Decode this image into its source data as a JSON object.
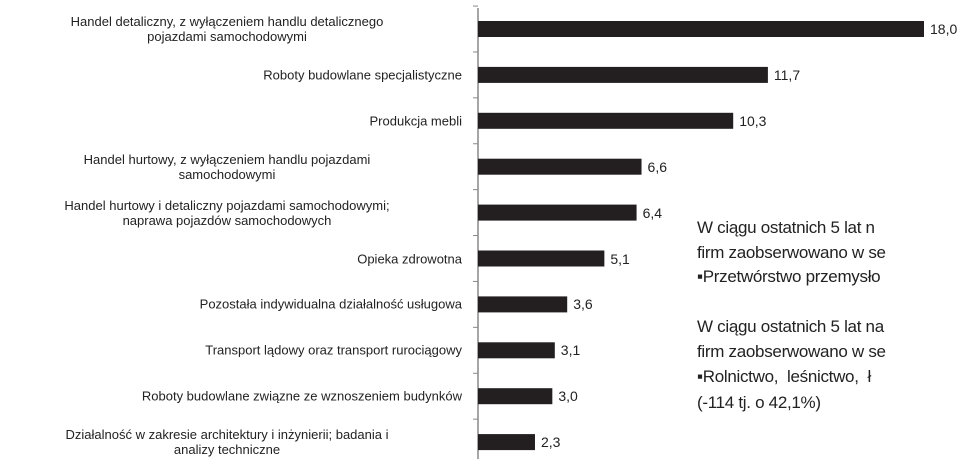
{
  "chart_data": {
    "type": "bar",
    "orientation": "horizontal",
    "categories": [
      "Handel detaliczny, z wyłączeniem handlu detalicznego\npojazdami samochodowymi",
      "Roboty budowlane specjalistyczne",
      "Produkcja mebli",
      "Handel hurtowy, z wyłączeniem  handlu pojazdami\nsamochodowymi",
      "Handel hurtowy i detaliczny pojazdami samochodowymi;\nnaprawa pojazdów samochodowych",
      "Opieka zdrowotna",
      "Pozostała indywidualna działalność usługowa",
      "Transport lądowy oraz transport rurociągowy",
      "Roboty budowlane związne ze wznoszeniem budynków",
      "Działalność w zakresie  architektury  i inżynierii; badania i\nanalizy techniczne"
    ],
    "values": [
      18.0,
      11.7,
      10.3,
      6.6,
      6.4,
      5.1,
      3.6,
      3.1,
      3.0,
      2.3
    ],
    "value_labels": [
      "18,0",
      "11,7",
      "10,3",
      "6,6",
      "6,4",
      "5,1",
      "3,6",
      "3,1",
      "3,0",
      "2,3"
    ],
    "color": "#231f20",
    "xlim": [
      0,
      18
    ],
    "annotations": [
      "W ciągu ostatnich 5 lat n",
      "firm zaobserwowano w se",
      "▪Przetwórstwo przemysło",
      "W ciągu ostatnich 5 lat na",
      "firm zaobserwowano w se",
      "▪Rolnictwo,  leśnictwo,  ł",
      "(-114 tj. o 42,1%)"
    ]
  }
}
